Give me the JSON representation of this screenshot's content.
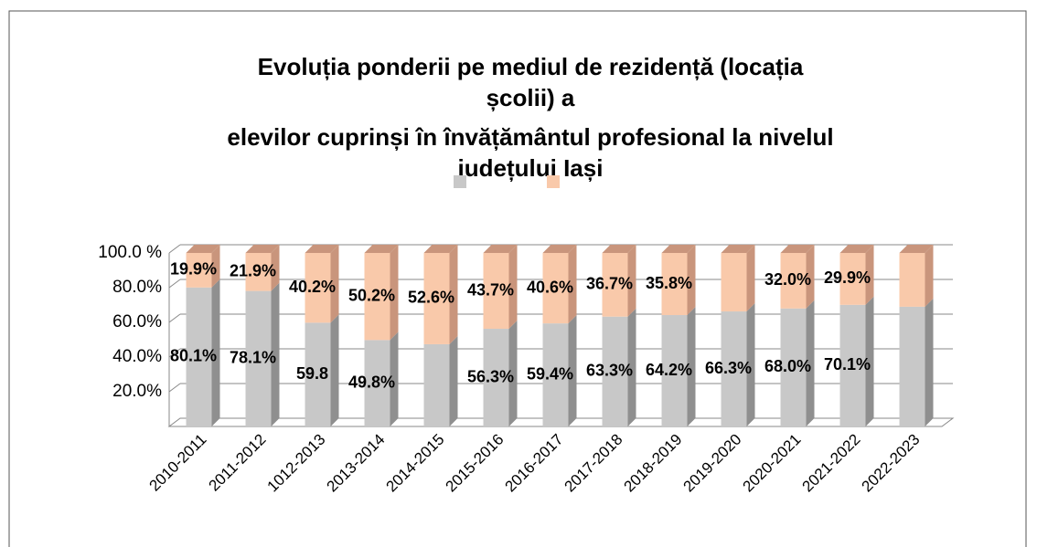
{
  "chart_data": {
    "type": "bar3d_stacked",
    "title": [
      "Evoluția ponderii pe mediul de rezidență (locația",
      "școlii) a",
      "elevilor cuprinși în învățământul profesional la nivelul",
      "județului Iași"
    ],
    "categories": [
      "2010-2011",
      "2011-2012",
      "1012-2013",
      "2013-2014",
      "2014-2015",
      "2015-2016",
      "2016-2017",
      "2017-2018",
      "2018-2019",
      "2019-2020",
      "2020-2021",
      "2021-2022",
      "2022-2023"
    ],
    "series": [
      {
        "color": "#c8c8c8",
        "side": "#8f8f8f",
        "values": [
          80.1,
          78.1,
          59.8,
          49.8,
          47.4,
          56.3,
          59.4,
          63.3,
          64.2,
          66.3,
          68.0,
          70.1,
          69
        ],
        "value_labels": [
          "80.1%",
          "78.1%",
          "59.8",
          "49.8%",
          null,
          "56.3%",
          "59.4%",
          "63.3%",
          "64.2%",
          "66.3%",
          "68.0%",
          "70.1%",
          null
        ]
      },
      {
        "color": "#f9c9aa",
        "side": "#c9957c",
        "values": [
          19.9,
          21.9,
          40.2,
          50.2,
          52.6,
          43.7,
          40.6,
          36.7,
          35.8,
          33.7,
          32.0,
          29.9,
          31
        ],
        "value_labels": [
          "19.9%",
          "21.9%",
          "40.2%",
          "50.2%",
          "52.6%",
          "43.7%",
          "40.6%",
          "36.7%",
          "35.8%",
          null,
          "32.0%",
          "29.9%",
          null
        ]
      }
    ],
    "ylim": [
      0,
      100
    ],
    "yticks": [
      {
        "value": 20,
        "label": "20.0%"
      },
      {
        "value": 40,
        "label": "40.0%"
      },
      {
        "value": 60,
        "label": "60.0%"
      },
      {
        "value": 80,
        "label": "80.0%"
      },
      {
        "value": 100,
        "label": "100.0 %"
      }
    ],
    "grid": true
  }
}
